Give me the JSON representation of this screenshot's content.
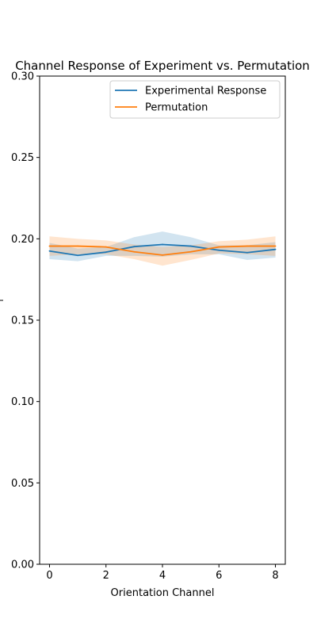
{
  "chart_data": {
    "type": "line",
    "title": "Channel Response of Experiment vs. Permutation",
    "xlabel": "Orientation Channel",
    "ylabel": "",
    "xlim": [
      -0.35,
      8.35
    ],
    "ylim": [
      0.0,
      0.3
    ],
    "x": [
      0,
      1,
      2,
      3,
      4,
      5,
      6,
      7,
      8
    ],
    "xticks": [
      0,
      2,
      4,
      6,
      8
    ],
    "yticks": [
      0.0,
      0.05,
      0.1,
      0.15,
      0.2,
      0.25,
      0.3
    ],
    "xtick_labels": [
      "0",
      "2",
      "4",
      "6",
      "8"
    ],
    "ytick_labels": [
      "0.00",
      "0.05",
      "0.10",
      "0.15",
      "0.20",
      "0.25",
      "0.30"
    ],
    "legend_position": "top-right",
    "grid": false,
    "series": [
      {
        "name": "Experimental Response",
        "color": "#1f77b4",
        "values": [
          0.1925,
          0.1898,
          0.1918,
          0.1952,
          0.1965,
          0.1955,
          0.193,
          0.1915,
          0.1935
        ],
        "lower": [
          0.1875,
          0.1862,
          0.1895,
          0.1895,
          0.189,
          0.1905,
          0.1905,
          0.187,
          0.1885
        ],
        "upper": [
          0.1975,
          0.194,
          0.195,
          0.201,
          0.2045,
          0.201,
          0.196,
          0.196,
          0.198
        ]
      },
      {
        "name": "Permutation",
        "color": "#ff7f0e",
        "values": [
          0.1955,
          0.1955,
          0.195,
          0.192,
          0.19,
          0.192,
          0.195,
          0.1955,
          0.1955
        ],
        "lower": [
          0.1895,
          0.1905,
          0.1905,
          0.1875,
          0.1835,
          0.187,
          0.191,
          0.1905,
          0.1895
        ],
        "upper": [
          0.2015,
          0.2,
          0.199,
          0.1965,
          0.195,
          0.196,
          0.1985,
          0.1995,
          0.2015
        ]
      }
    ]
  }
}
